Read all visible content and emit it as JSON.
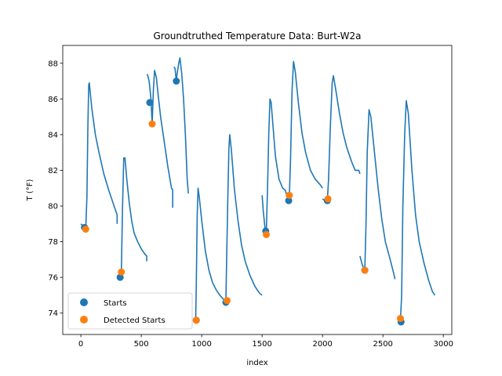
{
  "chart_data": {
    "type": "scatter",
    "title": "Groundtruthed Temperature Data: Burt-W2a",
    "xlabel": "index",
    "ylabel": "T (°F)",
    "xlim": [
      -150,
      3070
    ],
    "ylim": [
      72.8,
      89.0
    ],
    "xticks": [
      0,
      500,
      1000,
      1500,
      2000,
      2500,
      3000
    ],
    "yticks": [
      74,
      76,
      78,
      80,
      82,
      84,
      86,
      88
    ],
    "legend_position": "lower-left",
    "colors": {
      "line": "#1f77b4",
      "starts": "#1f77b4",
      "detected": "#ff7f0e"
    },
    "line_series": {
      "name": "",
      "segments": [
        [
          [
            0,
            79.0
          ],
          [
            30,
            78.8
          ],
          [
            40,
            78.7
          ],
          [
            50,
            80.5
          ],
          [
            58,
            84.5
          ],
          [
            65,
            86.8
          ],
          [
            70,
            86.9
          ],
          [
            90,
            85.5
          ],
          [
            120,
            84.0
          ],
          [
            150,
            83.0
          ],
          [
            190,
            81.8
          ],
          [
            230,
            80.9
          ],
          [
            270,
            80.1
          ],
          [
            300,
            79.5
          ],
          [
            300,
            79.0
          ]
        ],
        [
          [
            300,
            76.1
          ],
          [
            315,
            76.0
          ],
          [
            325,
            76.0
          ],
          [
            335,
            76.3
          ],
          [
            345,
            80.0
          ],
          [
            355,
            82.7
          ],
          [
            365,
            82.7
          ],
          [
            380,
            81.5
          ],
          [
            400,
            80.2
          ],
          [
            420,
            79.2
          ],
          [
            440,
            78.5
          ],
          [
            470,
            78.0
          ],
          [
            500,
            77.6
          ],
          [
            530,
            77.3
          ],
          [
            545,
            77.2
          ],
          [
            545,
            76.9
          ]
        ],
        [
          [
            550,
            87.4
          ],
          [
            565,
            87.0
          ],
          [
            580,
            86.0
          ],
          [
            590,
            84.6
          ],
          [
            600,
            86.5
          ],
          [
            610,
            87.6
          ],
          [
            625,
            87.2
          ],
          [
            640,
            86.2
          ],
          [
            660,
            85.0
          ],
          [
            690,
            83.6
          ],
          [
            720,
            82.2
          ],
          [
            750,
            81.0
          ],
          [
            760,
            80.9
          ],
          [
            760,
            79.9
          ]
        ],
        [
          [
            770,
            87.8
          ],
          [
            780,
            87.7
          ],
          [
            785,
            87.3
          ],
          [
            790,
            87.1
          ],
          [
            810,
            88.0
          ],
          [
            820,
            88.3
          ],
          [
            835,
            87.4
          ],
          [
            850,
            86.0
          ],
          [
            865,
            84.0
          ],
          [
            880,
            81.5
          ],
          [
            890,
            80.7
          ]
        ],
        [
          [
            950,
            73.5
          ],
          [
            955,
            75.5
          ],
          [
            963,
            79.5
          ],
          [
            970,
            81.0
          ],
          [
            980,
            80.5
          ],
          [
            1000,
            79.2
          ],
          [
            1030,
            77.5
          ],
          [
            1060,
            76.4
          ],
          [
            1090,
            75.7
          ],
          [
            1120,
            75.3
          ],
          [
            1150,
            75.0
          ],
          [
            1190,
            74.7
          ],
          [
            1200,
            74.6
          ]
        ],
        [
          [
            1200,
            74.6
          ],
          [
            1205,
            76.5
          ],
          [
            1215,
            80.0
          ],
          [
            1225,
            83.2
          ],
          [
            1232,
            84.0
          ],
          [
            1245,
            83.2
          ],
          [
            1270,
            81.0
          ],
          [
            1300,
            79.2
          ],
          [
            1330,
            77.8
          ],
          [
            1360,
            76.9
          ],
          [
            1400,
            76.1
          ],
          [
            1440,
            75.5
          ],
          [
            1480,
            75.1
          ],
          [
            1500,
            75.0
          ]
        ],
        [
          [
            1500,
            80.6
          ],
          [
            1510,
            79.7
          ],
          [
            1525,
            78.7
          ],
          [
            1535,
            78.6
          ],
          [
            1545,
            81.0
          ],
          [
            1555,
            84.0
          ],
          [
            1565,
            86.0
          ],
          [
            1575,
            85.8
          ],
          [
            1590,
            84.5
          ],
          [
            1610,
            82.8
          ],
          [
            1640,
            81.5
          ],
          [
            1670,
            81.0
          ],
          [
            1690,
            80.9
          ],
          [
            1700,
            80.7
          ]
        ],
        [
          [
            1700,
            80.7
          ],
          [
            1715,
            80.3
          ],
          [
            1725,
            80.5
          ],
          [
            1735,
            82.5
          ],
          [
            1748,
            86.5
          ],
          [
            1760,
            88.1
          ],
          [
            1775,
            87.5
          ],
          [
            1800,
            85.8
          ],
          [
            1830,
            84.1
          ],
          [
            1860,
            83.0
          ],
          [
            1900,
            82.0
          ],
          [
            1940,
            81.5
          ],
          [
            1980,
            81.2
          ],
          [
            2000,
            81.0
          ]
        ],
        [
          [
            2000,
            80.4
          ],
          [
            2020,
            80.3
          ],
          [
            2040,
            80.3
          ],
          [
            2050,
            81.5
          ],
          [
            2065,
            84.5
          ],
          [
            2080,
            86.9
          ],
          [
            2090,
            87.3
          ],
          [
            2110,
            86.5
          ],
          [
            2140,
            85.2
          ],
          [
            2170,
            84.1
          ],
          [
            2200,
            83.3
          ],
          [
            2240,
            82.5
          ],
          [
            2270,
            82.0
          ],
          [
            2300,
            82.0
          ],
          [
            2310,
            81.8
          ]
        ],
        [
          [
            2310,
            77.2
          ],
          [
            2325,
            76.8
          ],
          [
            2340,
            76.5
          ],
          [
            2350,
            76.4
          ],
          [
            2360,
            79.0
          ],
          [
            2370,
            83.0
          ],
          [
            2385,
            85.4
          ],
          [
            2400,
            85.0
          ],
          [
            2430,
            83.0
          ],
          [
            2460,
            81.0
          ],
          [
            2490,
            79.3
          ],
          [
            2520,
            78.0
          ],
          [
            2560,
            77.0
          ],
          [
            2590,
            76.2
          ],
          [
            2600,
            75.9
          ]
        ],
        [
          [
            2630,
            73.8
          ],
          [
            2645,
            73.6
          ],
          [
            2655,
            75.0
          ],
          [
            2665,
            80.0
          ],
          [
            2680,
            84.0
          ],
          [
            2693,
            85.9
          ],
          [
            2710,
            85.2
          ],
          [
            2740,
            82.0
          ],
          [
            2770,
            79.5
          ],
          [
            2800,
            78.0
          ],
          [
            2840,
            76.8
          ],
          [
            2880,
            75.8
          ],
          [
            2910,
            75.2
          ],
          [
            2930,
            75.0
          ]
        ]
      ]
    },
    "series": [
      {
        "name": "Starts",
        "points": [
          [
            30,
            78.8
          ],
          [
            325,
            76.0
          ],
          [
            570,
            85.8
          ],
          [
            790,
            87.0
          ],
          [
            955,
            73.6
          ],
          [
            1200,
            74.6
          ],
          [
            1530,
            78.6
          ],
          [
            1720,
            80.3
          ],
          [
            2040,
            80.3
          ],
          [
            2350,
            76.4
          ],
          [
            2650,
            73.5
          ]
        ]
      },
      {
        "name": "Detected Starts",
        "points": [
          [
            40,
            78.7
          ],
          [
            335,
            76.3
          ],
          [
            590,
            84.6
          ],
          [
            955,
            73.6
          ],
          [
            1210,
            74.7
          ],
          [
            1535,
            78.4
          ],
          [
            1725,
            80.6
          ],
          [
            2045,
            80.4
          ],
          [
            2350,
            76.4
          ],
          [
            2645,
            73.7
          ]
        ]
      }
    ]
  }
}
